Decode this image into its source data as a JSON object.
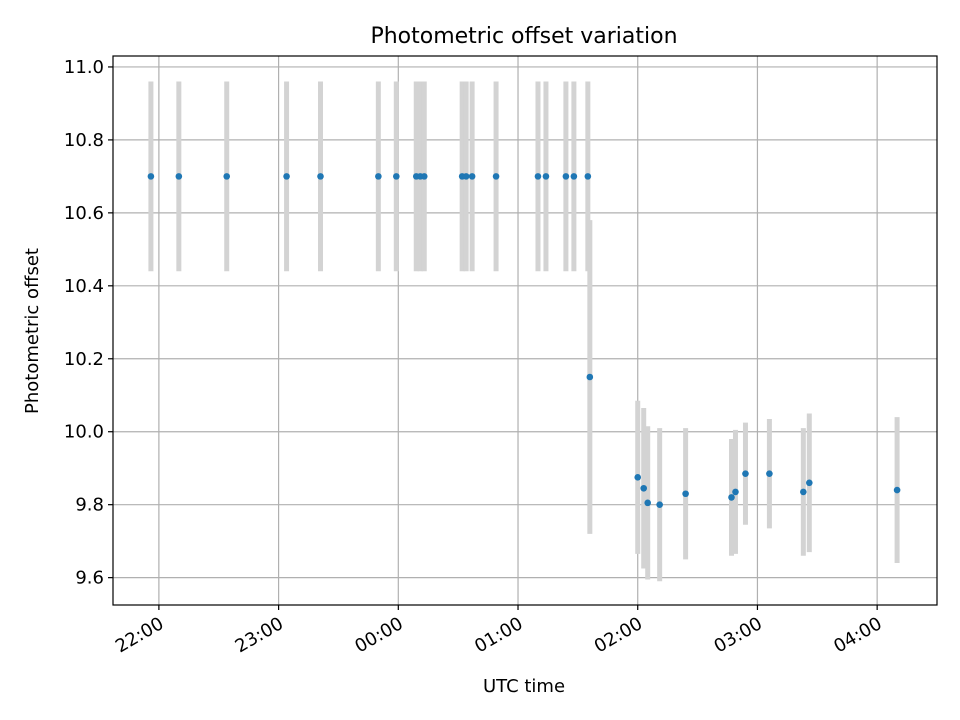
{
  "chart_data": {
    "type": "scatter",
    "title": "Photometric offset variation",
    "xlabel": "UTC time",
    "ylabel": "Photometric offset",
    "x_unit": "UTC time (HH:MM)",
    "xlim": [
      "21:37",
      "04:30"
    ],
    "ylim": [
      9.525,
      11.03
    ],
    "grid": true,
    "x_ticks": [
      "22:00",
      "23:00",
      "00:00",
      "01:00",
      "02:00",
      "03:00",
      "04:00"
    ],
    "y_ticks": [
      "9.6",
      "9.8",
      "10.0",
      "10.2",
      "10.4",
      "10.6",
      "10.8",
      "11.0"
    ],
    "marker_color": "#1f77b4",
    "errorbar_color": "#d3d3d3",
    "points": [
      {
        "t": "21:56",
        "y": 10.7,
        "err": 0.26
      },
      {
        "t": "22:10",
        "y": 10.7,
        "err": 0.26
      },
      {
        "t": "22:34",
        "y": 10.7,
        "err": 0.26
      },
      {
        "t": "23:04",
        "y": 10.7,
        "err": 0.26
      },
      {
        "t": "23:21",
        "y": 10.7,
        "err": 0.26
      },
      {
        "t": "23:50",
        "y": 10.7,
        "err": 0.26
      },
      {
        "t": "23:59",
        "y": 10.7,
        "err": 0.26
      },
      {
        "t": "00:09",
        "y": 10.7,
        "err": 0.26
      },
      {
        "t": "00:11",
        "y": 10.7,
        "err": 0.26
      },
      {
        "t": "00:13",
        "y": 10.7,
        "err": 0.26
      },
      {
        "t": "00:32",
        "y": 10.7,
        "err": 0.26
      },
      {
        "t": "00:34",
        "y": 10.7,
        "err": 0.26
      },
      {
        "t": "00:37",
        "y": 10.7,
        "err": 0.26
      },
      {
        "t": "00:49",
        "y": 10.7,
        "err": 0.26
      },
      {
        "t": "01:10",
        "y": 10.7,
        "err": 0.26
      },
      {
        "t": "01:14",
        "y": 10.7,
        "err": 0.26
      },
      {
        "t": "01:24",
        "y": 10.7,
        "err": 0.26
      },
      {
        "t": "01:28",
        "y": 10.7,
        "err": 0.26
      },
      {
        "t": "01:35",
        "y": 10.7,
        "err": 0.26
      },
      {
        "t": "01:36",
        "y": 10.15,
        "err": 0.43
      },
      {
        "t": "02:00",
        "y": 9.875,
        "err": 0.21
      },
      {
        "t": "02:03",
        "y": 9.845,
        "err": 0.22
      },
      {
        "t": "02:05",
        "y": 9.805,
        "err": 0.21
      },
      {
        "t": "02:11",
        "y": 9.8,
        "err": 0.21
      },
      {
        "t": "02:24",
        "y": 9.83,
        "err": 0.18
      },
      {
        "t": "02:47",
        "y": 9.82,
        "err": 0.16
      },
      {
        "t": "02:49",
        "y": 9.835,
        "err": 0.17
      },
      {
        "t": "02:54",
        "y": 9.885,
        "err": 0.14
      },
      {
        "t": "03:06",
        "y": 9.885,
        "err": 0.15
      },
      {
        "t": "03:23",
        "y": 9.835,
        "err": 0.175
      },
      {
        "t": "03:26",
        "y": 9.86,
        "err": 0.19
      },
      {
        "t": "04:10",
        "y": 9.84,
        "err": 0.2
      }
    ]
  }
}
